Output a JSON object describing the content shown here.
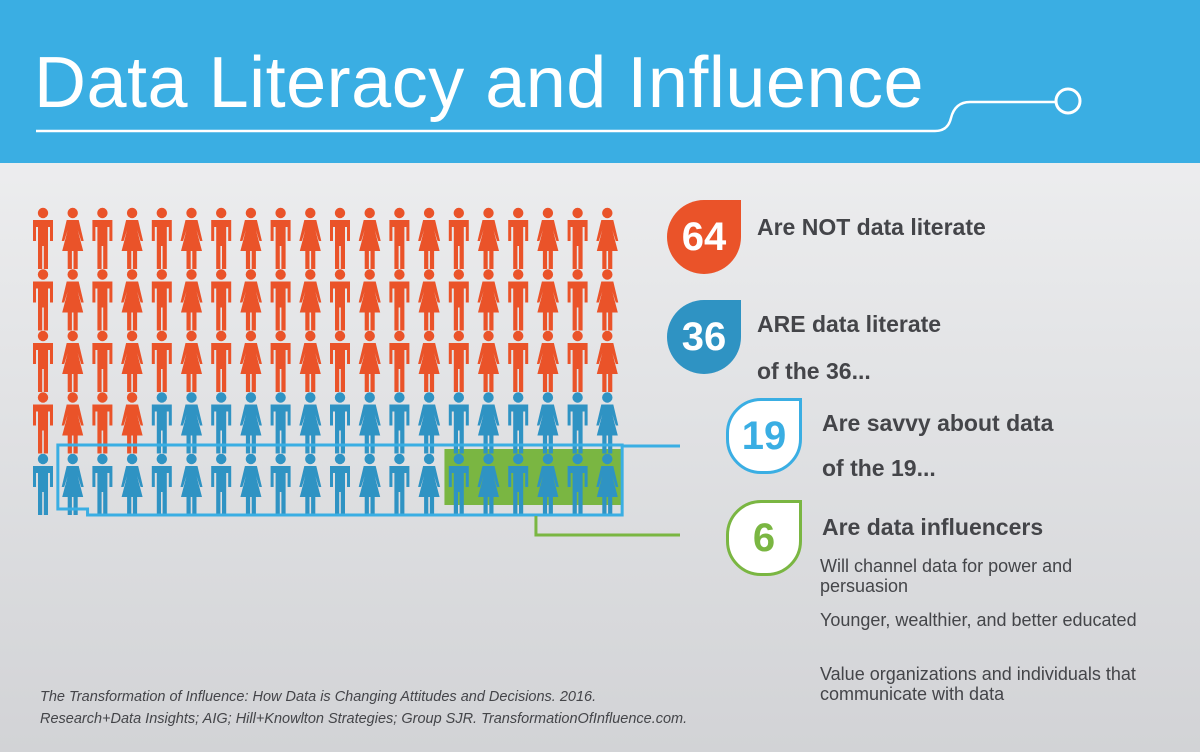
{
  "title": "Data Literacy and Influence",
  "colors": {
    "header": "#3aaee3",
    "not_literate": "#ea5329",
    "literate": "#2f93c3",
    "outline": "#3aaee3",
    "influencer": "#7ab642"
  },
  "chart_data": {
    "type": "pictograph",
    "total": 100,
    "segments": [
      {
        "value": 64,
        "label": "Are NOT data literate"
      },
      {
        "value": 36,
        "label": "ARE data literate",
        "sublabel": "of the 36..."
      },
      {
        "value": 19,
        "label": "Are savvy about data",
        "sublabel": "of the 19..."
      },
      {
        "value": 6,
        "label": "Are data influencers"
      }
    ]
  },
  "badges": {
    "not_literate": "64",
    "literate": "36",
    "savvy": "19",
    "influencers": "6"
  },
  "labels": {
    "not_literate": "Are NOT data literate",
    "literate": "ARE data literate",
    "literate_sub": "of the 36...",
    "savvy": "Are savvy about data",
    "savvy_sub": "of the 19...",
    "influencers": "Are data influencers"
  },
  "notes": [
    "Will channel data for power and persuasion",
    "Younger, wealthier, and better educated",
    "Value organizations and individuals that communicate with data"
  ],
  "source": [
    "The Transformation of Influence: How Data is Changing Attitudes and Decisions. 2016.",
    "Research+Data Insights; AIG; Hill+Knowlton Strategies; Group SJR. TransformationOfInfluence.com."
  ]
}
